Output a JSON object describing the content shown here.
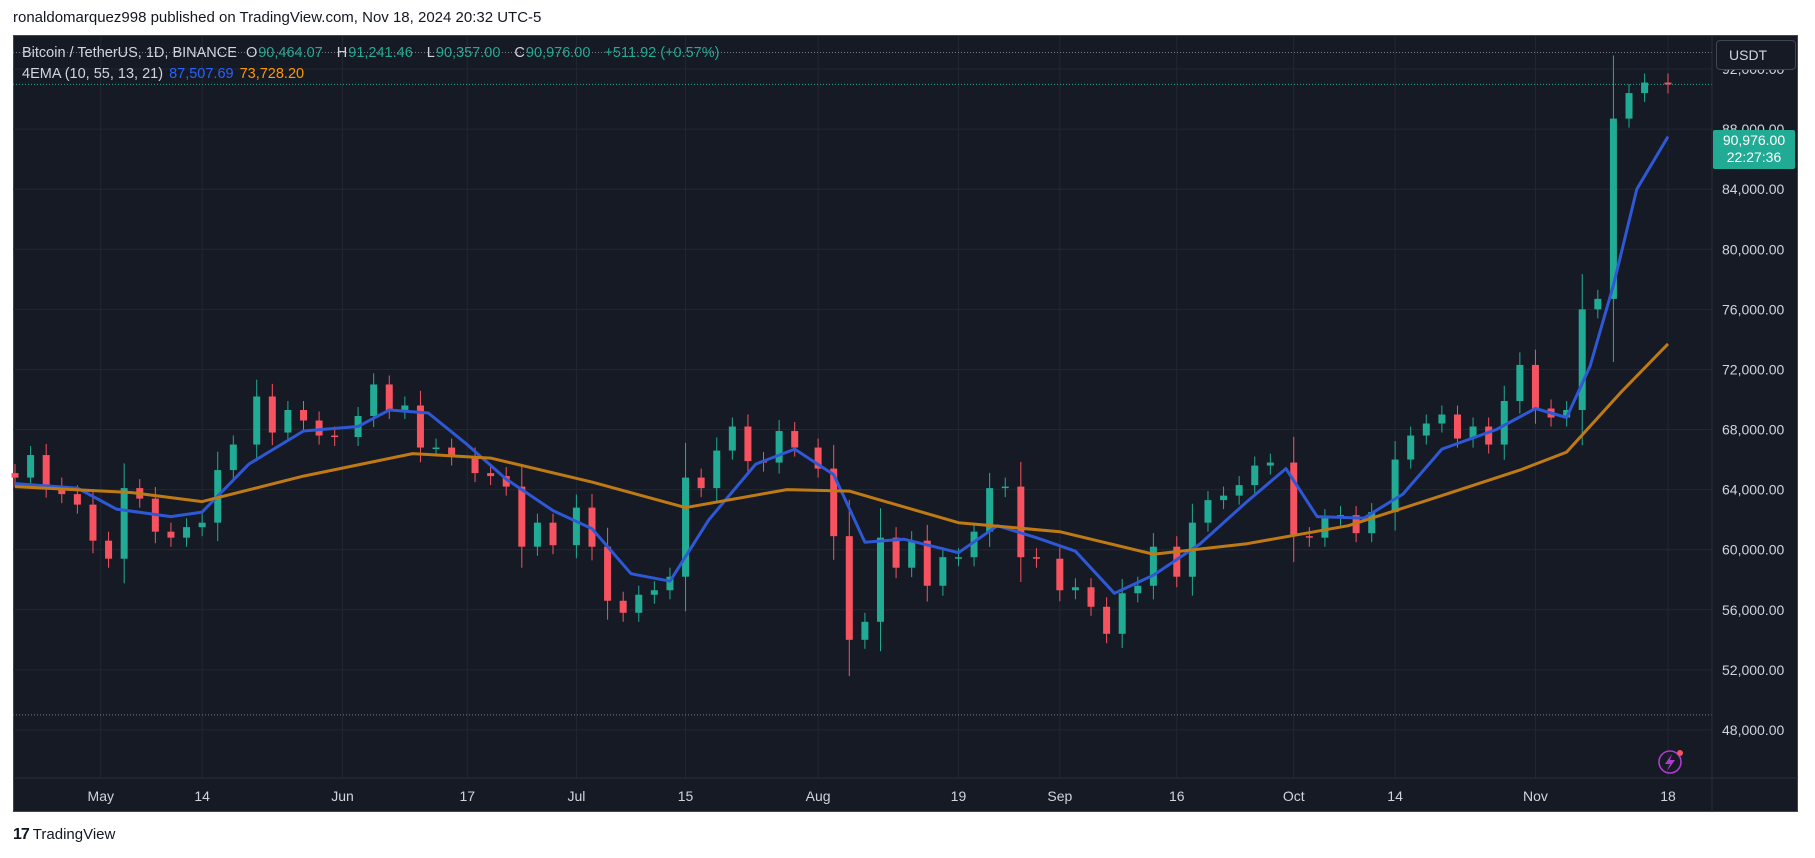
{
  "header": {
    "published_line": "ronaldomarquez998 published on TradingView.com, Nov 18, 2024 20:32 UTC-5"
  },
  "legend": {
    "symbol": "Bitcoin / TetherUS, 1D, BINANCE",
    "o_label": "O",
    "o_value": "90,464.07",
    "h_label": "H",
    "h_value": "91,241.46",
    "l_label": "L",
    "l_value": "90,357.00",
    "c_label": "C",
    "c_value": "90,976.00",
    "change": "+511.92 (+0.57%)",
    "indicator": "4EMA (10, 55, 13, 21)",
    "ema_fast_value": "87,507.69",
    "ema_slow_value": "73,728.20"
  },
  "toolbar": {
    "currency_label": "USDT"
  },
  "price_tag": {
    "price": "90,976.00",
    "countdown": "22:27:36"
  },
  "footer": {
    "brand": "TradingView",
    "brand_mark": "17"
  },
  "colors": {
    "background": "#161a25",
    "up": "#22ab94",
    "down": "#f7525f",
    "ema_fast": "#2e58d6",
    "ema_slow": "#c07a14",
    "grid": "#232733",
    "axis_text": "#d1d4dc"
  },
  "chart_data": {
    "type": "candlestick",
    "title": "Bitcoin / TetherUS, 1D, BINANCE",
    "y_axis_labels": [
      "92,000.00",
      "88,000.00",
      "84,000.00",
      "80,000.00",
      "76,000.00",
      "72,000.00",
      "68,000.00",
      "64,000.00",
      "60,000.00",
      "56,000.00",
      "52,000.00",
      "48,000.00"
    ],
    "y_ticks": [
      92000,
      88000,
      84000,
      80000,
      76000,
      72000,
      68000,
      64000,
      60000,
      56000,
      52000,
      48000
    ],
    "x_axis_labels": [
      "May",
      "14",
      "Jun",
      "17",
      "Jul",
      "15",
      "Aug",
      "19",
      "Sep",
      "16",
      "Oct",
      "14",
      "Nov",
      "18"
    ],
    "x_ticks": [
      "2024-05-01",
      "2024-05-14",
      "2024-06-01",
      "2024-06-17",
      "2024-07-01",
      "2024-07-15",
      "2024-08-01",
      "2024-08-19",
      "2024-09-01",
      "2024-09-16",
      "2024-10-01",
      "2024-10-14",
      "2024-11-01",
      "2024-11-18"
    ],
    "x_range": [
      "2024-04-20",
      "2024-11-18"
    ],
    "ylim": [
      44800,
      94200
    ],
    "candles": [
      {
        "date": "2024-04-20",
        "close": 64800
      },
      {
        "date": "2024-04-22",
        "close": 66300
      },
      {
        "date": "2024-04-24",
        "close": 64200
      },
      {
        "date": "2024-04-26",
        "close": 63700
      },
      {
        "date": "2024-04-28",
        "close": 63000
      },
      {
        "date": "2024-04-30",
        "close": 60600
      },
      {
        "date": "2024-05-02",
        "close": 59400
      },
      {
        "date": "2024-05-04",
        "close": 64100
      },
      {
        "date": "2024-05-06",
        "close": 63400
      },
      {
        "date": "2024-05-08",
        "close": 61200
      },
      {
        "date": "2024-05-10",
        "close": 60800
      },
      {
        "date": "2024-05-12",
        "close": 61500
      },
      {
        "date": "2024-05-14",
        "close": 61800
      },
      {
        "date": "2024-05-16",
        "close": 65300
      },
      {
        "date": "2024-05-18",
        "close": 67000
      },
      {
        "date": "2024-05-21",
        "close": 70200
      },
      {
        "date": "2024-05-23",
        "close": 67800
      },
      {
        "date": "2024-05-25",
        "close": 69300
      },
      {
        "date": "2024-05-27",
        "close": 68600
      },
      {
        "date": "2024-05-29",
        "close": 67600
      },
      {
        "date": "2024-05-31",
        "close": 67500
      },
      {
        "date": "2024-06-03",
        "close": 68900
      },
      {
        "date": "2024-06-05",
        "close": 71000
      },
      {
        "date": "2024-06-07",
        "close": 69300
      },
      {
        "date": "2024-06-09",
        "close": 69600
      },
      {
        "date": "2024-06-11",
        "close": 66800
      },
      {
        "date": "2024-06-13",
        "close": 66800
      },
      {
        "date": "2024-06-15",
        "close": 66200
      },
      {
        "date": "2024-06-18",
        "close": 65100
      },
      {
        "date": "2024-06-20",
        "close": 64900
      },
      {
        "date": "2024-06-22",
        "close": 64200
      },
      {
        "date": "2024-06-24",
        "close": 60200
      },
      {
        "date": "2024-06-26",
        "close": 61800
      },
      {
        "date": "2024-06-28",
        "close": 60300
      },
      {
        "date": "2024-07-01",
        "close": 62800
      },
      {
        "date": "2024-07-03",
        "close": 60200
      },
      {
        "date": "2024-07-05",
        "close": 56600
      },
      {
        "date": "2024-07-07",
        "close": 55800
      },
      {
        "date": "2024-07-09",
        "close": 57000
      },
      {
        "date": "2024-07-11",
        "close": 57300
      },
      {
        "date": "2024-07-13",
        "close": 58200
      },
      {
        "date": "2024-07-15",
        "close": 64800
      },
      {
        "date": "2024-07-17",
        "close": 64100
      },
      {
        "date": "2024-07-19",
        "close": 66600
      },
      {
        "date": "2024-07-21",
        "close": 68200
      },
      {
        "date": "2024-07-23",
        "close": 65900
      },
      {
        "date": "2024-07-25",
        "close": 65800
      },
      {
        "date": "2024-07-27",
        "close": 67900
      },
      {
        "date": "2024-07-29",
        "close": 66800
      },
      {
        "date": "2024-08-01",
        "close": 65400
      },
      {
        "date": "2024-08-03",
        "close": 60900
      },
      {
        "date": "2024-08-05",
        "close": 54000
      },
      {
        "date": "2024-08-07",
        "close": 55200
      },
      {
        "date": "2024-08-09",
        "close": 60800
      },
      {
        "date": "2024-08-11",
        "close": 58800
      },
      {
        "date": "2024-08-13",
        "close": 60600
      },
      {
        "date": "2024-08-15",
        "close": 57600
      },
      {
        "date": "2024-08-17",
        "close": 59500
      },
      {
        "date": "2024-08-19",
        "close": 59500
      },
      {
        "date": "2024-08-21",
        "close": 61200
      },
      {
        "date": "2024-08-23",
        "close": 64100
      },
      {
        "date": "2024-08-25",
        "close": 64200
      },
      {
        "date": "2024-08-27",
        "close": 59500
      },
      {
        "date": "2024-08-29",
        "close": 59400
      },
      {
        "date": "2024-09-01",
        "close": 57300
      },
      {
        "date": "2024-09-03",
        "close": 57500
      },
      {
        "date": "2024-09-05",
        "close": 56200
      },
      {
        "date": "2024-09-07",
        "close": 54400
      },
      {
        "date": "2024-09-09",
        "close": 57100
      },
      {
        "date": "2024-09-11",
        "close": 57600
      },
      {
        "date": "2024-09-13",
        "close": 60200
      },
      {
        "date": "2024-09-16",
        "close": 58200
      },
      {
        "date": "2024-09-18",
        "close": 61800
      },
      {
        "date": "2024-09-20",
        "close": 63300
      },
      {
        "date": "2024-09-22",
        "close": 63600
      },
      {
        "date": "2024-09-24",
        "close": 64300
      },
      {
        "date": "2024-09-26",
        "close": 65600
      },
      {
        "date": "2024-09-28",
        "close": 65800
      },
      {
        "date": "2024-10-01",
        "close": 60900
      },
      {
        "date": "2024-10-03",
        "close": 60800
      },
      {
        "date": "2024-10-05",
        "close": 62100
      },
      {
        "date": "2024-10-07",
        "close": 62300
      },
      {
        "date": "2024-10-09",
        "close": 61100
      },
      {
        "date": "2024-10-11",
        "close": 62500
      },
      {
        "date": "2024-10-14",
        "close": 66000
      },
      {
        "date": "2024-10-16",
        "close": 67600
      },
      {
        "date": "2024-10-18",
        "close": 68400
      },
      {
        "date": "2024-10-20",
        "close": 69000
      },
      {
        "date": "2024-10-22",
        "close": 67400
      },
      {
        "date": "2024-10-24",
        "close": 68200
      },
      {
        "date": "2024-10-26",
        "close": 67000
      },
      {
        "date": "2024-10-28",
        "close": 69900
      },
      {
        "date": "2024-10-30",
        "close": 72300
      },
      {
        "date": "2024-11-01",
        "close": 69400
      },
      {
        "date": "2024-11-03",
        "close": 68800
      },
      {
        "date": "2024-11-05",
        "close": 69300
      },
      {
        "date": "2024-11-07",
        "close": 76000
      },
      {
        "date": "2024-11-09",
        "close": 76700
      },
      {
        "date": "2024-11-11",
        "close": 88700
      },
      {
        "date": "2024-11-13",
        "close": 90400
      },
      {
        "date": "2024-11-15",
        "close": 91100
      },
      {
        "date": "2024-11-18",
        "close": 90976
      }
    ],
    "series": [
      {
        "name": "4EMA 87,507.69",
        "points": [
          [
            "2024-04-20",
            64400
          ],
          [
            "2024-04-28",
            64100
          ],
          [
            "2024-05-03",
            62700
          ],
          [
            "2024-05-10",
            62200
          ],
          [
            "2024-05-14",
            62500
          ],
          [
            "2024-05-20",
            65700
          ],
          [
            "2024-05-27",
            67900
          ],
          [
            "2024-06-03",
            68200
          ],
          [
            "2024-06-07",
            69300
          ],
          [
            "2024-06-12",
            69100
          ],
          [
            "2024-06-17",
            67000
          ],
          [
            "2024-06-22",
            64700
          ],
          [
            "2024-06-28",
            62600
          ],
          [
            "2024-07-03",
            61400
          ],
          [
            "2024-07-08",
            58400
          ],
          [
            "2024-07-13",
            57900
          ],
          [
            "2024-07-18",
            62000
          ],
          [
            "2024-07-24",
            65700
          ],
          [
            "2024-07-29",
            66700
          ],
          [
            "2024-08-03",
            65000
          ],
          [
            "2024-08-07",
            60500
          ],
          [
            "2024-08-12",
            60700
          ],
          [
            "2024-08-19",
            59800
          ],
          [
            "2024-08-24",
            61600
          ],
          [
            "2024-08-29",
            60800
          ],
          [
            "2024-09-03",
            59900
          ],
          [
            "2024-09-08",
            57100
          ],
          [
            "2024-09-13",
            58300
          ],
          [
            "2024-09-19",
            60400
          ],
          [
            "2024-09-25",
            63200
          ],
          [
            "2024-09-30",
            65400
          ],
          [
            "2024-10-04",
            62200
          ],
          [
            "2024-10-10",
            62100
          ],
          [
            "2024-10-15",
            63700
          ],
          [
            "2024-10-20",
            66700
          ],
          [
            "2024-10-27",
            68000
          ],
          [
            "2024-11-01",
            69400
          ],
          [
            "2024-11-05",
            68800
          ],
          [
            "2024-11-08",
            72200
          ],
          [
            "2024-11-11",
            77600
          ],
          [
            "2024-11-14",
            84000
          ],
          [
            "2024-11-18",
            87500
          ]
        ]
      },
      {
        "name": "4EMA 73,728.20",
        "points": [
          [
            "2024-04-20",
            64200
          ],
          [
            "2024-05-05",
            63800
          ],
          [
            "2024-05-14",
            63200
          ],
          [
            "2024-05-27",
            64900
          ],
          [
            "2024-06-10",
            66400
          ],
          [
            "2024-06-20",
            66100
          ],
          [
            "2024-07-03",
            64500
          ],
          [
            "2024-07-15",
            62800
          ],
          [
            "2024-07-28",
            64000
          ],
          [
            "2024-08-05",
            63900
          ],
          [
            "2024-08-19",
            61800
          ],
          [
            "2024-09-01",
            61200
          ],
          [
            "2024-09-13",
            59700
          ],
          [
            "2024-09-25",
            60400
          ],
          [
            "2024-10-08",
            61600
          ],
          [
            "2024-10-20",
            63600
          ],
          [
            "2024-10-30",
            65300
          ],
          [
            "2024-11-05",
            66500
          ],
          [
            "2024-11-12",
            70500
          ],
          [
            "2024-11-18",
            73700
          ]
        ]
      }
    ]
  }
}
